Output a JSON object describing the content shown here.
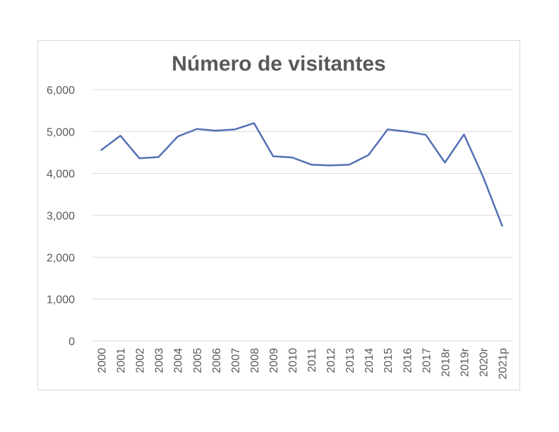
{
  "chart_data": {
    "type": "line",
    "title": "Número de visitantes",
    "categories": [
      "2000",
      "2001",
      "2002",
      "2003",
      "2004",
      "2005",
      "2006",
      "2007",
      "2008",
      "2009",
      "2010",
      "2011",
      "2012",
      "2013",
      "2014",
      "2015",
      "2016",
      "2017",
      "2018r",
      "2019r",
      "2020r",
      "2021p"
    ],
    "series": [
      {
        "values": [
          4560,
          4900,
          4360,
          4390,
          4880,
          5060,
          5020,
          5050,
          5200,
          4410,
          4380,
          4210,
          4190,
          4210,
          4440,
          5050,
          5000,
          4920,
          4260,
          4930,
          3920,
          2750
        ],
        "color": "#5470b4"
      }
    ],
    "y_ticks": [
      "0",
      "1,000",
      "2,000",
      "3,000",
      "4,000",
      "5,000",
      "6,000"
    ],
    "ylim": [
      0,
      6000
    ],
    "grid": true,
    "legend": "none"
  }
}
